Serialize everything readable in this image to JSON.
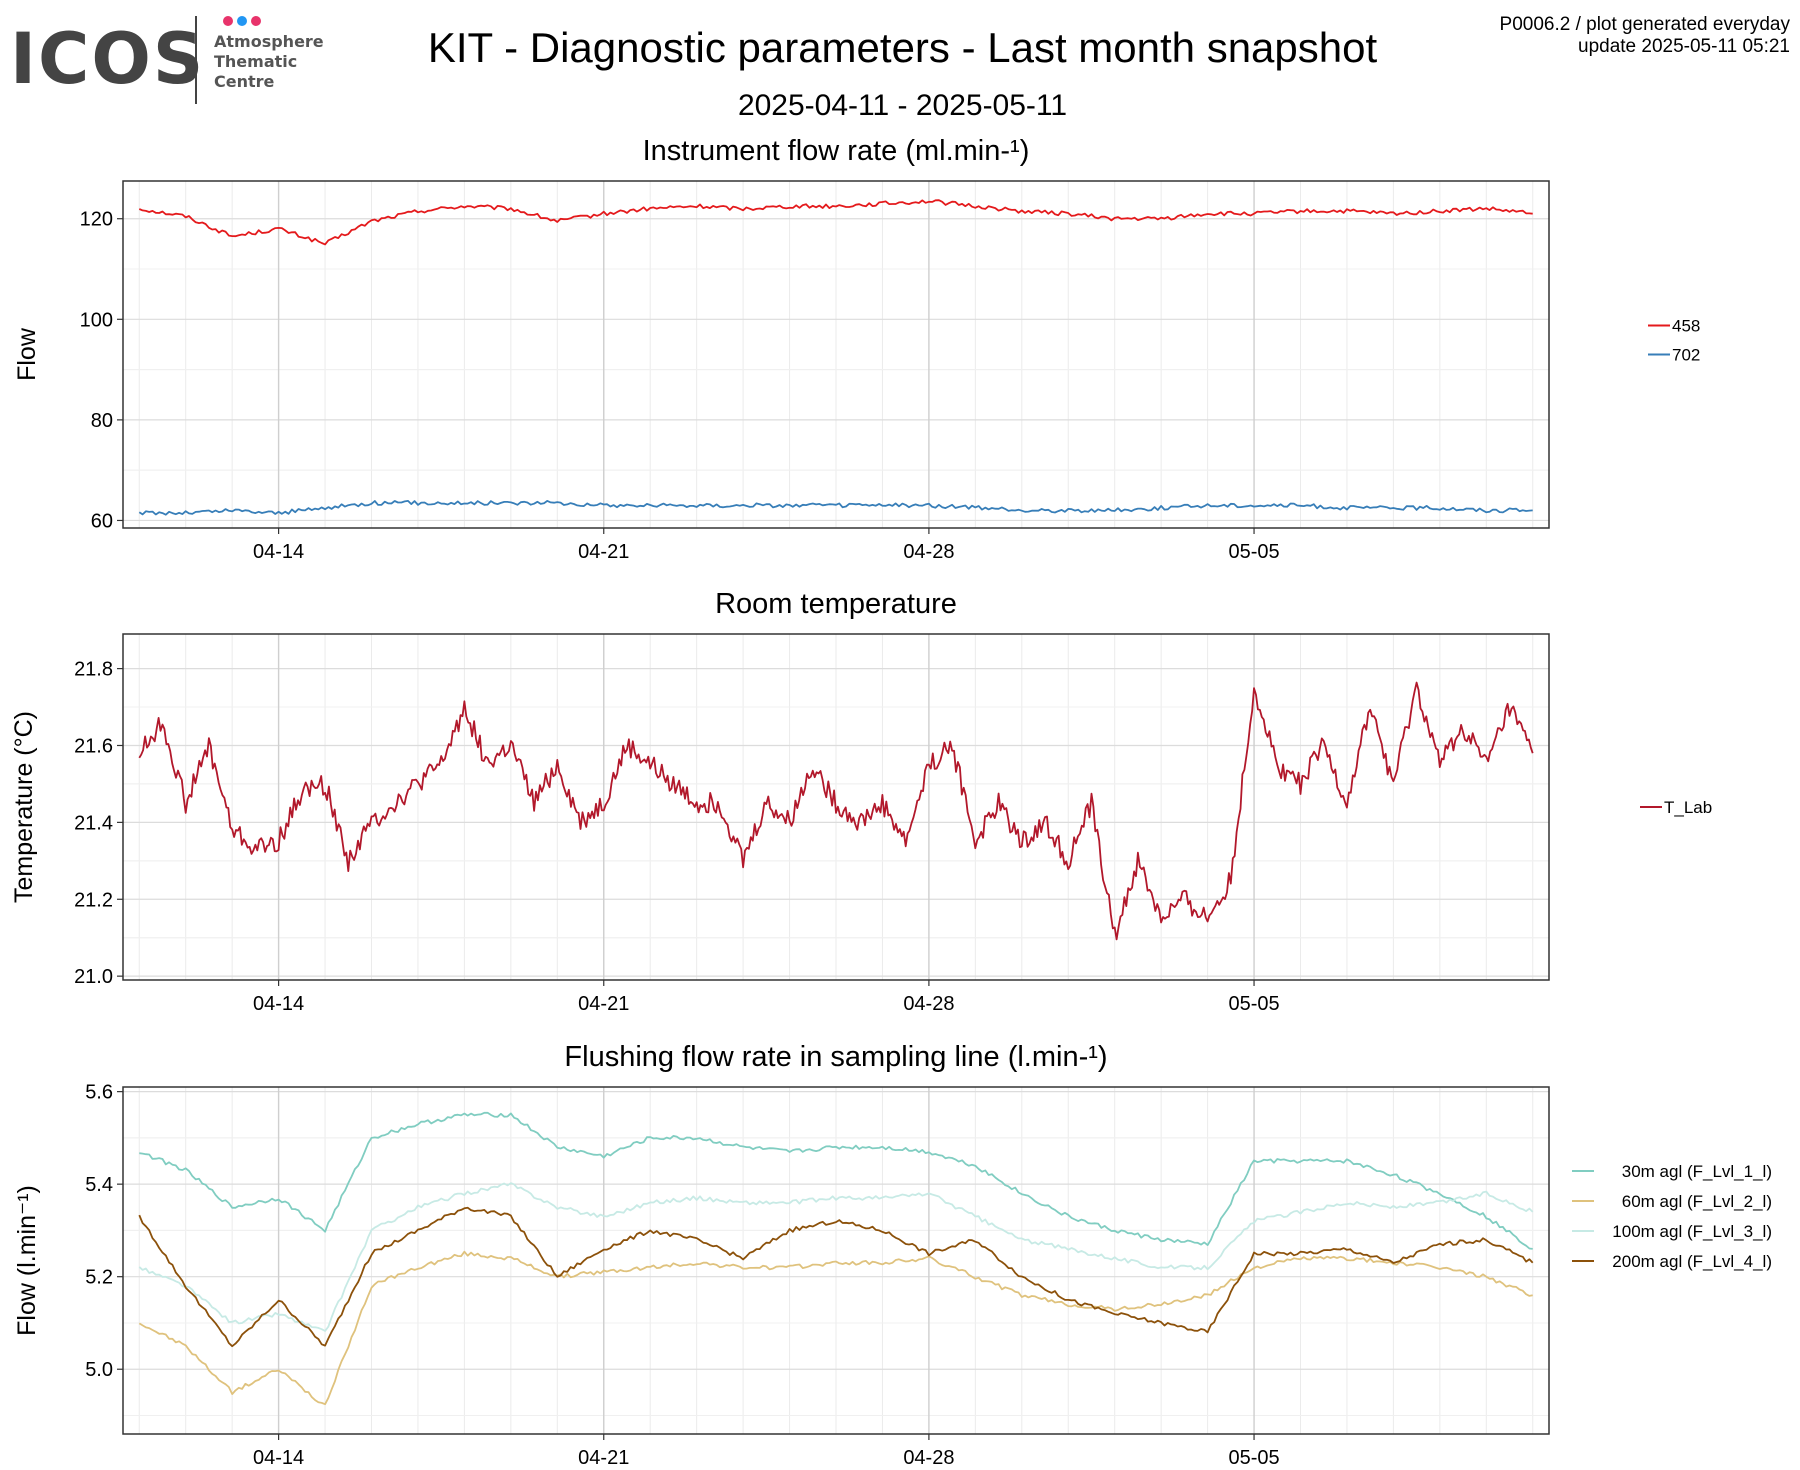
{
  "logo": {
    "wordmark": "ICOS",
    "lines": [
      "Atmosphere",
      "Thematic",
      "Centre"
    ],
    "dot_colors": [
      "#e8336b",
      "#2196f3",
      "#e8336b"
    ]
  },
  "header": {
    "title": "KIT - Diagnostic parameters - Last month snapshot",
    "date_range": "2025-04-11 - 2025-05-11",
    "meta_line1": "P0006.2 / plot generated everyday",
    "meta_line2": "update  2025-05-11 05:21"
  },
  "x_axis": {
    "start": "2025-04-11",
    "end": "2025-05-11",
    "ticks": [
      "04-14",
      "04-21",
      "04-28",
      "05-05"
    ],
    "tick_dates": [
      "2025-04-14",
      "2025-04-21",
      "2025-04-28",
      "2025-05-05"
    ]
  },
  "chart_data": [
    {
      "type": "line",
      "title": "Instrument flow rate (ml.min-¹)",
      "ylabel": "Flow",
      "ylim": [
        58.5,
        127.5
      ],
      "yticks": [
        60,
        80,
        100,
        120
      ],
      "grid": true,
      "legend_position": "right",
      "x": [
        "2025-04-11",
        "2025-04-12",
        "2025-04-13",
        "2025-04-14",
        "2025-04-15",
        "2025-04-16",
        "2025-04-17",
        "2025-04-18",
        "2025-04-19",
        "2025-04-20",
        "2025-04-21",
        "2025-04-22",
        "2025-04-23",
        "2025-04-24",
        "2025-04-25",
        "2025-04-26",
        "2025-04-27",
        "2025-04-28",
        "2025-04-29",
        "2025-04-30",
        "2025-05-01",
        "2025-05-02",
        "2025-05-03",
        "2025-05-04",
        "2025-05-05",
        "2025-05-06",
        "2025-05-07",
        "2025-05-08",
        "2025-05-09",
        "2025-05-10",
        "2025-05-11"
      ],
      "series": [
        {
          "name": "458",
          "color": "#e41a1c",
          "values": [
            122.0,
            120.5,
            116.5,
            118.0,
            115.0,
            119.5,
            121.5,
            122.5,
            122.0,
            119.5,
            121.0,
            122.0,
            122.5,
            122.0,
            122.5,
            122.5,
            123.0,
            123.5,
            122.5,
            121.5,
            121.0,
            120.0,
            120.0,
            121.0,
            121.0,
            121.5,
            121.5,
            121.0,
            121.5,
            122.0,
            121.0
          ]
        },
        {
          "name": "702",
          "color": "#377eb8",
          "values": [
            61.5,
            61.5,
            62.0,
            61.5,
            62.5,
            63.5,
            63.5,
            63.5,
            63.5,
            63.5,
            63.0,
            63.0,
            63.0,
            63.0,
            63.0,
            63.0,
            63.0,
            63.0,
            62.5,
            62.0,
            62.0,
            62.0,
            62.5,
            63.0,
            63.0,
            63.0,
            62.5,
            62.5,
            62.5,
            62.0,
            62.0
          ]
        }
      ]
    },
    {
      "type": "line",
      "title": "Room temperature",
      "ylabel": "Temperature (°C)",
      "ylim": [
        20.99,
        21.89
      ],
      "yticks": [
        21.0,
        21.2,
        21.4,
        21.6,
        21.8
      ],
      "grid": true,
      "legend_position": "right",
      "x": [
        "2025-04-11",
        "2025-04-11T12",
        "2025-04-12",
        "2025-04-12T12",
        "2025-04-13",
        "2025-04-13T12",
        "2025-04-14",
        "2025-04-14T12",
        "2025-04-15",
        "2025-04-15T12",
        "2025-04-16",
        "2025-04-16T12",
        "2025-04-17",
        "2025-04-17T12",
        "2025-04-18",
        "2025-04-18T12",
        "2025-04-19",
        "2025-04-19T12",
        "2025-04-20",
        "2025-04-20T12",
        "2025-04-21",
        "2025-04-21T12",
        "2025-04-22",
        "2025-04-22T12",
        "2025-04-23",
        "2025-04-23T12",
        "2025-04-24",
        "2025-04-24T12",
        "2025-04-25",
        "2025-04-25T12",
        "2025-04-26",
        "2025-04-26T12",
        "2025-04-27",
        "2025-04-27T12",
        "2025-04-28",
        "2025-04-28T12",
        "2025-04-29",
        "2025-04-29T12",
        "2025-04-30",
        "2025-04-30T12",
        "2025-05-01",
        "2025-05-01T12",
        "2025-05-02",
        "2025-05-02T12",
        "2025-05-03",
        "2025-05-03T12",
        "2025-05-04",
        "2025-05-04T12",
        "2025-05-05",
        "2025-05-05T12",
        "2025-05-06",
        "2025-05-06T12",
        "2025-05-07",
        "2025-05-07T12",
        "2025-05-08",
        "2025-05-08T12",
        "2025-05-09",
        "2025-05-09T12",
        "2025-05-10",
        "2025-05-10T12",
        "2025-05-11"
      ],
      "series": [
        {
          "name": "T_Lab",
          "color": "#b2182b",
          "values": [
            21.58,
            21.66,
            21.45,
            21.6,
            21.38,
            21.33,
            21.35,
            21.48,
            21.5,
            21.3,
            21.4,
            21.45,
            21.5,
            21.55,
            21.7,
            21.55,
            21.6,
            21.45,
            21.55,
            21.4,
            21.45,
            21.6,
            21.55,
            21.5,
            21.45,
            21.45,
            21.3,
            21.45,
            21.4,
            21.55,
            21.45,
            21.4,
            21.45,
            21.35,
            21.55,
            21.6,
            21.35,
            21.45,
            21.35,
            21.4,
            21.3,
            21.45,
            21.1,
            21.3,
            21.15,
            21.2,
            21.15,
            21.25,
            21.75,
            21.55,
            21.5,
            21.6,
            21.45,
            21.7,
            21.5,
            21.75,
            21.55,
            21.65,
            21.55,
            21.7,
            21.58
          ]
        }
      ]
    },
    {
      "type": "line",
      "title": "Flushing flow rate in sampling line (l.min-¹)",
      "ylabel": "Flow (l.min⁻¹)",
      "ylim": [
        4.86,
        5.61
      ],
      "yticks": [
        5.0,
        5.2,
        5.4,
        5.6
      ],
      "grid": true,
      "legend_position": "right",
      "x": [
        "2025-04-11",
        "2025-04-12",
        "2025-04-13",
        "2025-04-14",
        "2025-04-15",
        "2025-04-16",
        "2025-04-17",
        "2025-04-18",
        "2025-04-19",
        "2025-04-20",
        "2025-04-21",
        "2025-04-22",
        "2025-04-23",
        "2025-04-24",
        "2025-04-25",
        "2025-04-26",
        "2025-04-27",
        "2025-04-28",
        "2025-04-29",
        "2025-04-30",
        "2025-05-01",
        "2025-05-02",
        "2025-05-03",
        "2025-05-04",
        "2025-05-05",
        "2025-05-06",
        "2025-05-07",
        "2025-05-08",
        "2025-05-09",
        "2025-05-10",
        "2025-05-11"
      ],
      "series": [
        {
          "name": "30m agl (F_Lvl_1_l)",
          "color": "#80cdc1",
          "values": [
            5.47,
            5.43,
            5.35,
            5.37,
            5.3,
            5.5,
            5.53,
            5.55,
            5.55,
            5.48,
            5.46,
            5.5,
            5.5,
            5.48,
            5.47,
            5.48,
            5.48,
            5.47,
            5.44,
            5.38,
            5.33,
            5.3,
            5.28,
            5.27,
            5.45,
            5.45,
            5.45,
            5.42,
            5.38,
            5.33,
            5.26
          ]
        },
        {
          "name": "60m agl (F_Lvl_2_l)",
          "color": "#dfc27d",
          "values": [
            5.1,
            5.05,
            4.95,
            5.0,
            4.92,
            5.18,
            5.22,
            5.25,
            5.24,
            5.2,
            5.21,
            5.22,
            5.23,
            5.22,
            5.22,
            5.23,
            5.23,
            5.24,
            5.2,
            5.16,
            5.14,
            5.13,
            5.14,
            5.16,
            5.22,
            5.24,
            5.24,
            5.23,
            5.22,
            5.2,
            5.16
          ]
        },
        {
          "name": "100m agl (F_Lvl_3_l)",
          "color": "#c7eae5",
          "values": [
            5.22,
            5.18,
            5.1,
            5.12,
            5.08,
            5.3,
            5.35,
            5.38,
            5.4,
            5.35,
            5.33,
            5.36,
            5.37,
            5.36,
            5.36,
            5.37,
            5.37,
            5.38,
            5.33,
            5.28,
            5.26,
            5.24,
            5.22,
            5.22,
            5.32,
            5.34,
            5.36,
            5.35,
            5.36,
            5.38,
            5.34
          ]
        },
        {
          "name": "200m agl (F_Lvl_4_l)",
          "color": "#8c510a",
          "values": [
            5.33,
            5.18,
            5.05,
            5.15,
            5.05,
            5.25,
            5.3,
            5.35,
            5.33,
            5.2,
            5.26,
            5.3,
            5.28,
            5.24,
            5.3,
            5.32,
            5.3,
            5.25,
            5.28,
            5.2,
            5.15,
            5.12,
            5.1,
            5.08,
            5.25,
            5.25,
            5.26,
            5.23,
            5.27,
            5.28,
            5.23
          ]
        }
      ]
    }
  ]
}
